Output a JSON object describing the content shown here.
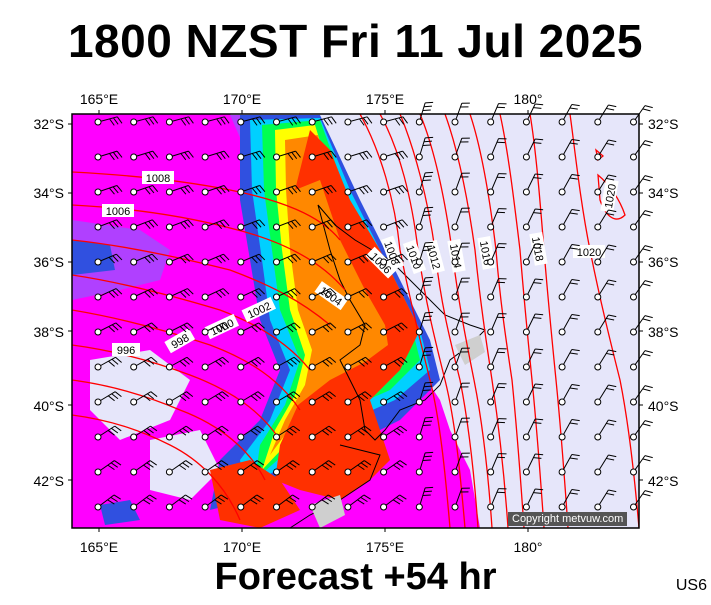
{
  "title": "1800 NZST Fri 11 Jul 2025",
  "footer": "Forecast +54 hr",
  "model_code": "US6",
  "copyright": "Copyright metvuw.com",
  "axes": {
    "lon_labels": [
      "165°E",
      "170°E",
      "175°E",
      "180°"
    ],
    "lat_labels": [
      "32°S",
      "34°S",
      "36°S",
      "38°S",
      "40°S",
      "42°S"
    ]
  },
  "isobars": [
    {
      "label": "1008"
    },
    {
      "label": "1006"
    },
    {
      "label": "1004"
    },
    {
      "label": "1002"
    },
    {
      "label": "1000"
    },
    {
      "label": "998"
    },
    {
      "label": "996"
    },
    {
      "label": "1006"
    },
    {
      "label": "1008"
    },
    {
      "label": "1010"
    },
    {
      "label": "1012"
    },
    {
      "label": "1014"
    },
    {
      "label": "1016"
    },
    {
      "label": "1018"
    },
    {
      "label": "1020"
    },
    {
      "label": "1020"
    }
  ],
  "colors": {
    "background": "#e6e6fa",
    "isobar": "#ff0000",
    "wind_barb": "#000000",
    "rain_magenta": "#ff00ff",
    "rain_purple": "#b040ff",
    "rain_blue": "#3050e0",
    "rain_cyan": "#00d0ff",
    "rain_green": "#00ff50",
    "rain_yellow": "#ffff00",
    "rain_orange": "#ff8800",
    "rain_red": "#ff3000"
  }
}
